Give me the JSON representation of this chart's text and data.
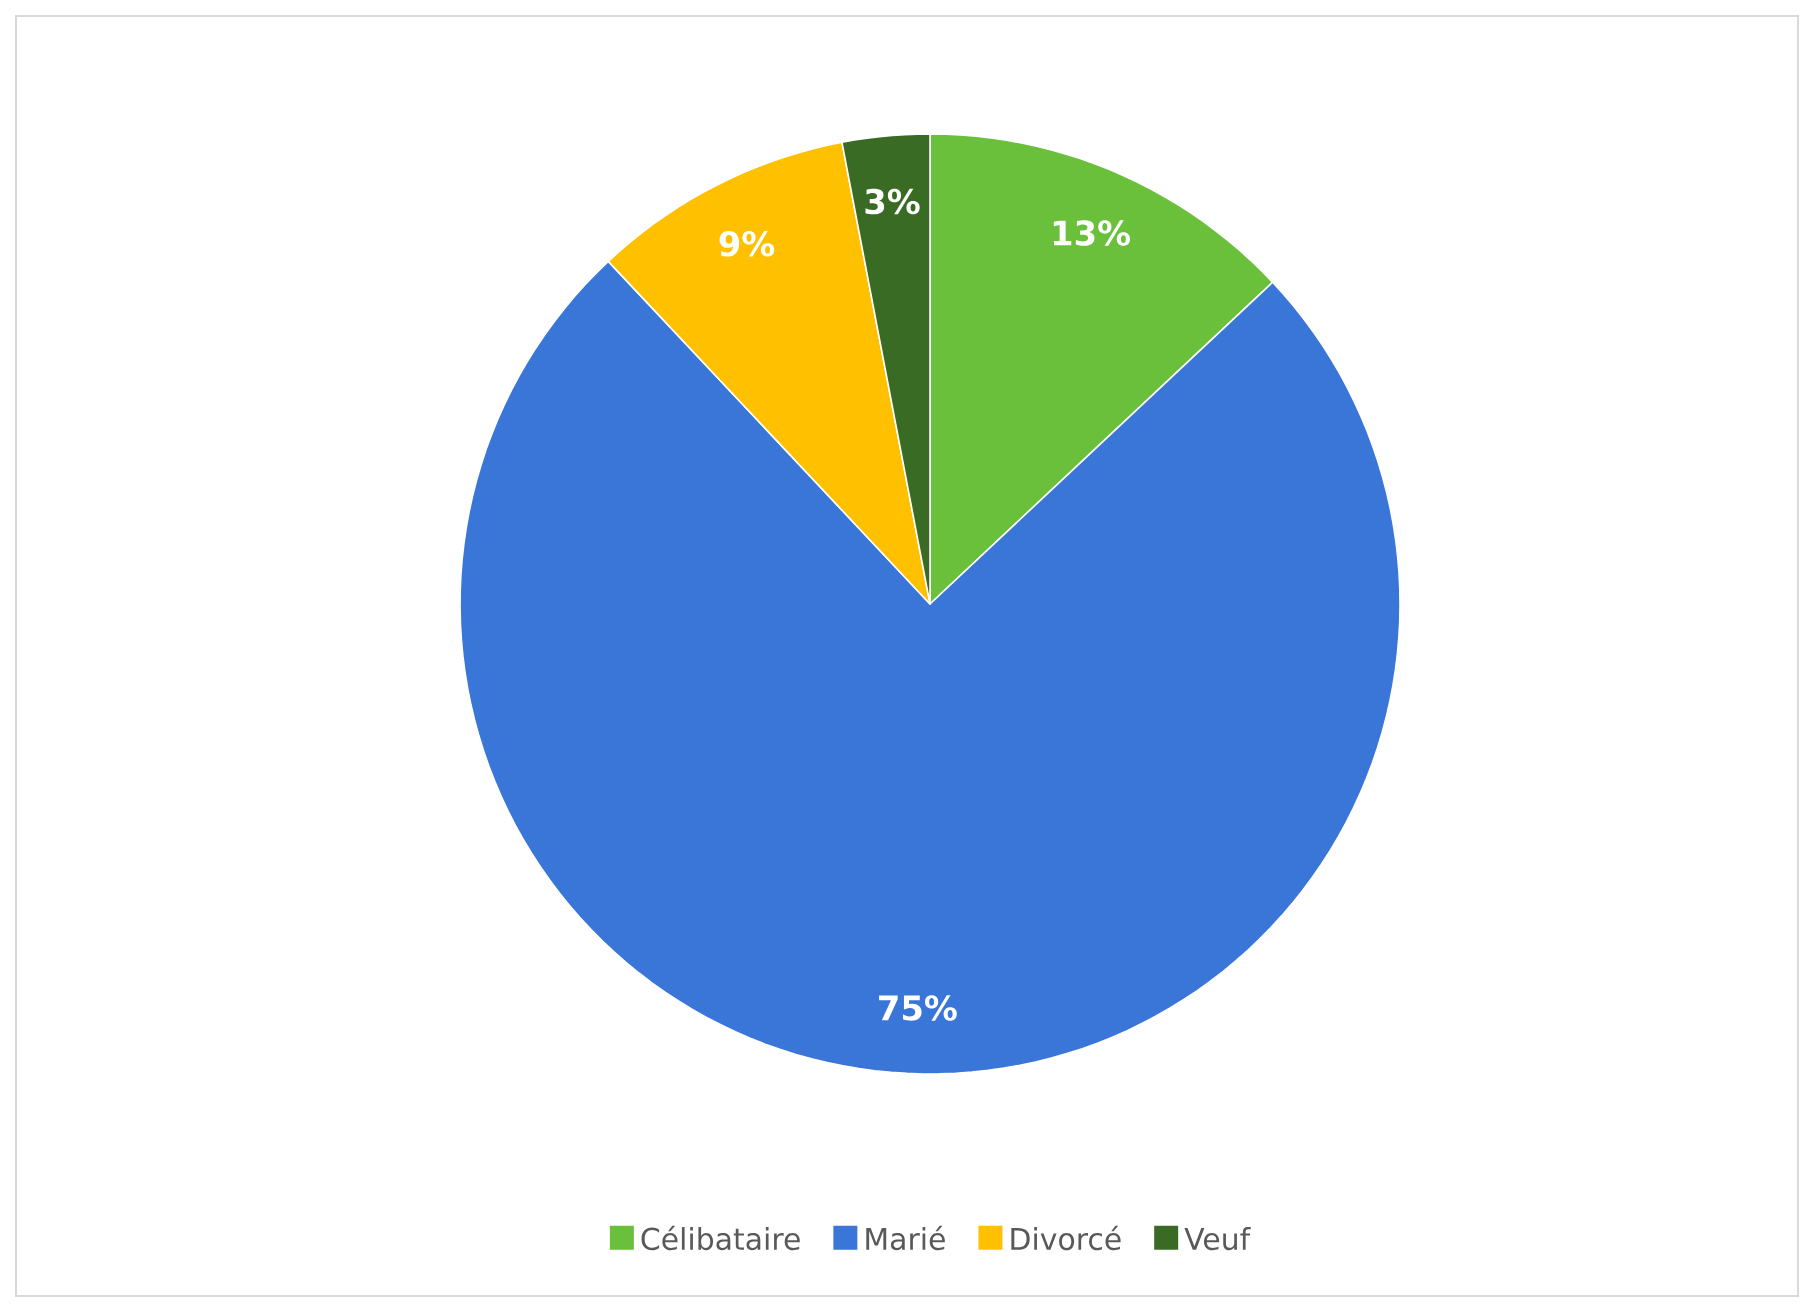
{
  "chart_data": {
    "type": "pie",
    "categories": [
      "Célibataire",
      "Marié",
      "Divorcé",
      "Veuf"
    ],
    "values": [
      13,
      75,
      9,
      3
    ],
    "value_labels": [
      "13%",
      "75%",
      "9%",
      "3%"
    ],
    "colors": [
      "#6abf3b",
      "#3a76d8",
      "#ffc000",
      "#3a6b24"
    ],
    "legend": "bottom"
  }
}
